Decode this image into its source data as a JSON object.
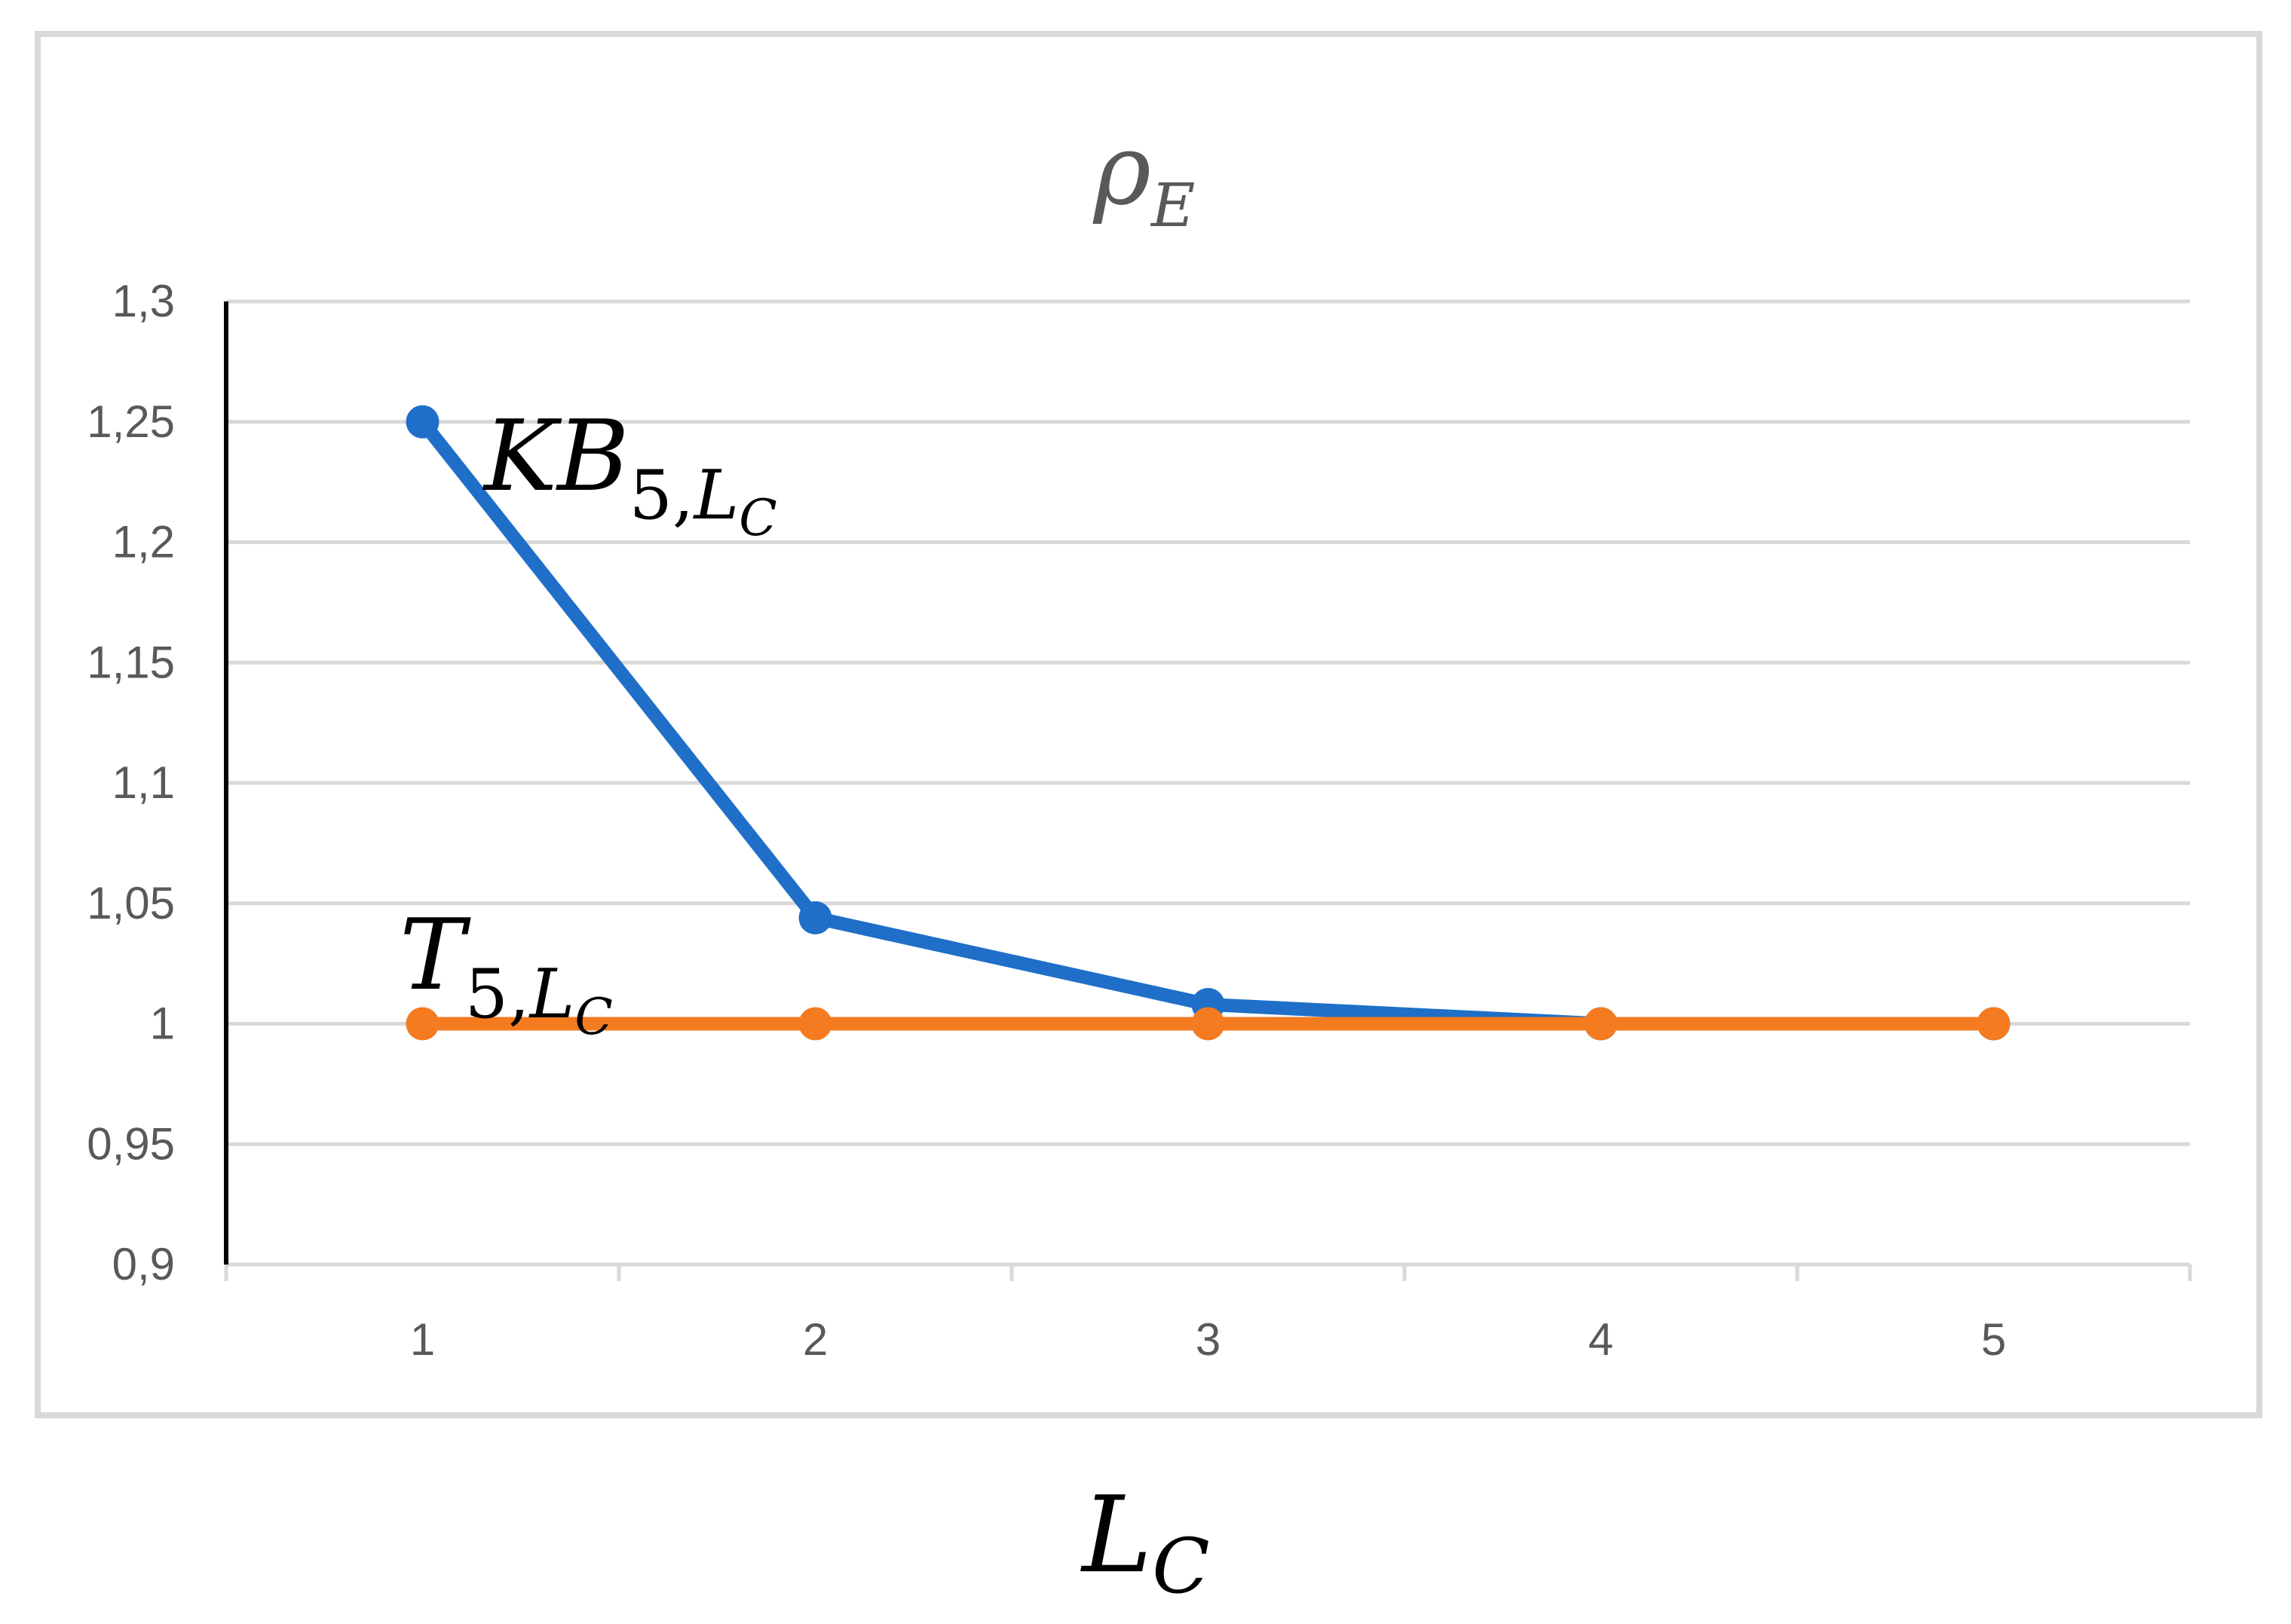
{
  "chart_data": {
    "type": "line",
    "title_symbol": "ρ",
    "title_subscript": "E",
    "xlabel_symbol": "L",
    "xlabel_subscript": "C",
    "categories": [
      "1",
      "2",
      "3",
      "4",
      "5"
    ],
    "ylim": [
      0.9,
      1.3
    ],
    "yticks": [
      0.9,
      0.95,
      1.0,
      1.05,
      1.1,
      1.15,
      1.2,
      1.25,
      1.3
    ],
    "ytick_labels": [
      "0,9",
      "0,95",
      "1",
      "1,05",
      "1,1",
      "1,15",
      "1,2",
      "1,25",
      "1,3"
    ],
    "grid": true,
    "legend": "none",
    "series": [
      {
        "name": "KB5,LC",
        "label_main": "KB",
        "label_sub1": "5,",
        "label_sub2": "L",
        "label_sub3": "C",
        "color": "#1F6FC8",
        "values": [
          1.25,
          1.044,
          1.008,
          1.0,
          1.0
        ]
      },
      {
        "name": "T5,LC",
        "label_main": "T",
        "label_sub1": "5,",
        "label_sub2": "L",
        "label_sub3": "C",
        "color": "#F47B20",
        "values": [
          1.0,
          1.0,
          1.0,
          1.0,
          1.0
        ]
      }
    ],
    "colors": {
      "grid": "#D9D9D9",
      "axis_text": "#595959",
      "frame": "#D9D9D9",
      "left_axis": "#000000",
      "title": "#595959"
    }
  }
}
